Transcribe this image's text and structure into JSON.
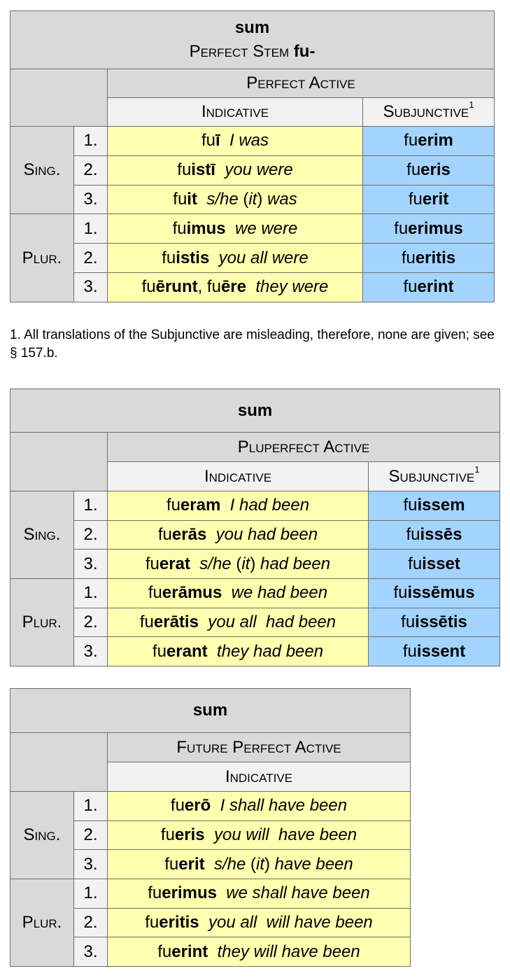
{
  "tables": [
    {
      "title": "sum",
      "subtitle": "Perfect Stem ",
      "subtitle_bold": "fu-",
      "group": "Perfect Active",
      "moods": [
        "Indicative",
        "Subjunctive"
      ],
      "mood_footnote": "1",
      "numbers": [
        "Sing.",
        "Plur."
      ],
      "rows": [
        {
          "person": "1.",
          "ind": [
            [
              "fu",
              "n"
            ],
            [
              "ī",
              "b"
            ],
            [
              "  ",
              "n"
            ],
            [
              "I was",
              "i"
            ]
          ],
          "subj": [
            [
              "fu",
              "n"
            ],
            [
              "erim",
              "b"
            ]
          ]
        },
        {
          "person": "2.",
          "ind": [
            [
              "fu",
              "n"
            ],
            [
              "istī",
              "b"
            ],
            [
              "  ",
              "n"
            ],
            [
              "you were",
              "i"
            ]
          ],
          "subj": [
            [
              "fu",
              "n"
            ],
            [
              "eris",
              "b"
            ]
          ]
        },
        {
          "person": "3.",
          "ind": [
            [
              "fu",
              "n"
            ],
            [
              "it",
              "b"
            ],
            [
              "  ",
              "n"
            ],
            [
              "s/he ",
              "i"
            ],
            [
              "(",
              "n"
            ],
            [
              "it",
              "i"
            ],
            [
              ")",
              "n"
            ],
            [
              " was",
              "i"
            ]
          ],
          "subj": [
            [
              "fu",
              "n"
            ],
            [
              "erit",
              "b"
            ]
          ]
        },
        {
          "person": "1.",
          "ind": [
            [
              "fu",
              "n"
            ],
            [
              "imus",
              "b"
            ],
            [
              "  ",
              "n"
            ],
            [
              "we were",
              "i"
            ]
          ],
          "subj": [
            [
              "fu",
              "n"
            ],
            [
              "erimus",
              "b"
            ]
          ]
        },
        {
          "person": "2.",
          "ind": [
            [
              "fu",
              "n"
            ],
            [
              "istis",
              "b"
            ],
            [
              "  ",
              "n"
            ],
            [
              "you all were",
              "i"
            ]
          ],
          "subj": [
            [
              "fu",
              "n"
            ],
            [
              "eritis",
              "b"
            ]
          ]
        },
        {
          "person": "3.",
          "ind": [
            [
              "fu",
              "n"
            ],
            [
              "ērunt",
              "b"
            ],
            [
              ", fu",
              "n"
            ],
            [
              "ēre",
              "b"
            ],
            [
              "  ",
              "n"
            ],
            [
              "they were",
              "i"
            ]
          ],
          "subj": [
            [
              "fu",
              "n"
            ],
            [
              "erint",
              "b"
            ]
          ]
        }
      ]
    },
    {
      "title": "sum",
      "group": "Pluperfect Active",
      "moods": [
        "Indicative",
        "Subjunctive"
      ],
      "mood_footnote": "1",
      "numbers": [
        "Sing.",
        "Plur."
      ],
      "rows": [
        {
          "person": "1.",
          "ind": [
            [
              "fu",
              "n"
            ],
            [
              "eram",
              "b"
            ],
            [
              "  ",
              "n"
            ],
            [
              "I had been",
              "i"
            ]
          ],
          "subj": [
            [
              "fu",
              "n"
            ],
            [
              "issem",
              "b"
            ]
          ]
        },
        {
          "person": "2.",
          "ind": [
            [
              "fu",
              "n"
            ],
            [
              "erās",
              "b"
            ],
            [
              "  ",
              "n"
            ],
            [
              "you had been",
              "i"
            ]
          ],
          "subj": [
            [
              "fu",
              "n"
            ],
            [
              "issēs",
              "b"
            ]
          ]
        },
        {
          "person": "3.",
          "ind": [
            [
              "fu",
              "n"
            ],
            [
              "erat",
              "b"
            ],
            [
              "  ",
              "n"
            ],
            [
              "s/he ",
              "i"
            ],
            [
              "(",
              "n"
            ],
            [
              "it",
              "i"
            ],
            [
              ")",
              "n"
            ],
            [
              " had been",
              "i"
            ]
          ],
          "subj": [
            [
              "fu",
              "n"
            ],
            [
              "isset",
              "b"
            ]
          ]
        },
        {
          "person": "1.",
          "ind": [
            [
              "fu",
              "n"
            ],
            [
              "erāmus",
              "b"
            ],
            [
              "  ",
              "n"
            ],
            [
              "we had been",
              "i"
            ]
          ],
          "subj": [
            [
              "fu",
              "n"
            ],
            [
              "issēmus",
              "b"
            ]
          ]
        },
        {
          "person": "2.",
          "ind": [
            [
              "fu",
              "n"
            ],
            [
              "erātis",
              "b"
            ],
            [
              "  ",
              "n"
            ],
            [
              "you all  had been",
              "i"
            ]
          ],
          "subj": [
            [
              "fu",
              "n"
            ],
            [
              "issētis",
              "b"
            ]
          ]
        },
        {
          "person": "3.",
          "ind": [
            [
              "fu",
              "n"
            ],
            [
              "erant",
              "b"
            ],
            [
              "  ",
              "n"
            ],
            [
              "they had been",
              "i"
            ]
          ],
          "subj": [
            [
              "fu",
              "n"
            ],
            [
              "issent",
              "b"
            ]
          ]
        }
      ]
    },
    {
      "title": "sum",
      "group": "Future Perfect Active",
      "moods": [
        "Indicative"
      ],
      "numbers": [
        "Sing.",
        "Plur."
      ],
      "rows": [
        {
          "person": "1.",
          "ind": [
            [
              "fu",
              "n"
            ],
            [
              "erō",
              "b"
            ],
            [
              "  ",
              "n"
            ],
            [
              "I shall have been",
              "i"
            ]
          ]
        },
        {
          "person": "2.",
          "ind": [
            [
              "fu",
              "n"
            ],
            [
              "eris",
              "b"
            ],
            [
              "  ",
              "n"
            ],
            [
              "you will  have been",
              "i"
            ]
          ]
        },
        {
          "person": "3.",
          "ind": [
            [
              "fu",
              "n"
            ],
            [
              "erit",
              "b"
            ],
            [
              "  ",
              "n"
            ],
            [
              "s/he ",
              "i"
            ],
            [
              "(",
              "n"
            ],
            [
              "it",
              "i"
            ],
            [
              ")",
              "n"
            ],
            [
              " have been",
              "i"
            ]
          ]
        },
        {
          "person": "1.",
          "ind": [
            [
              "fu",
              "n"
            ],
            [
              "erimus",
              "b"
            ],
            [
              "  ",
              "n"
            ],
            [
              "we shall have been",
              "i"
            ]
          ]
        },
        {
          "person": "2.",
          "ind": [
            [
              "fu",
              "n"
            ],
            [
              "eritis",
              "b"
            ],
            [
              "  ",
              "n"
            ],
            [
              "you all  will have been",
              "i"
            ]
          ]
        },
        {
          "person": "3.",
          "ind": [
            [
              "fu",
              "n"
            ],
            [
              "erint",
              "b"
            ],
            [
              "  ",
              "n"
            ],
            [
              "they will have been",
              "i"
            ]
          ]
        }
      ]
    }
  ],
  "footnote": "1. All translations of the Subjunctive are misleading, therefore, none are given; see § 157.b.",
  "colors": {
    "header_gray": "#d9d9d9",
    "mood_header": "#f2f2f2",
    "indicative": "#ffffb0",
    "subjunctive": "#a3d4ff"
  }
}
